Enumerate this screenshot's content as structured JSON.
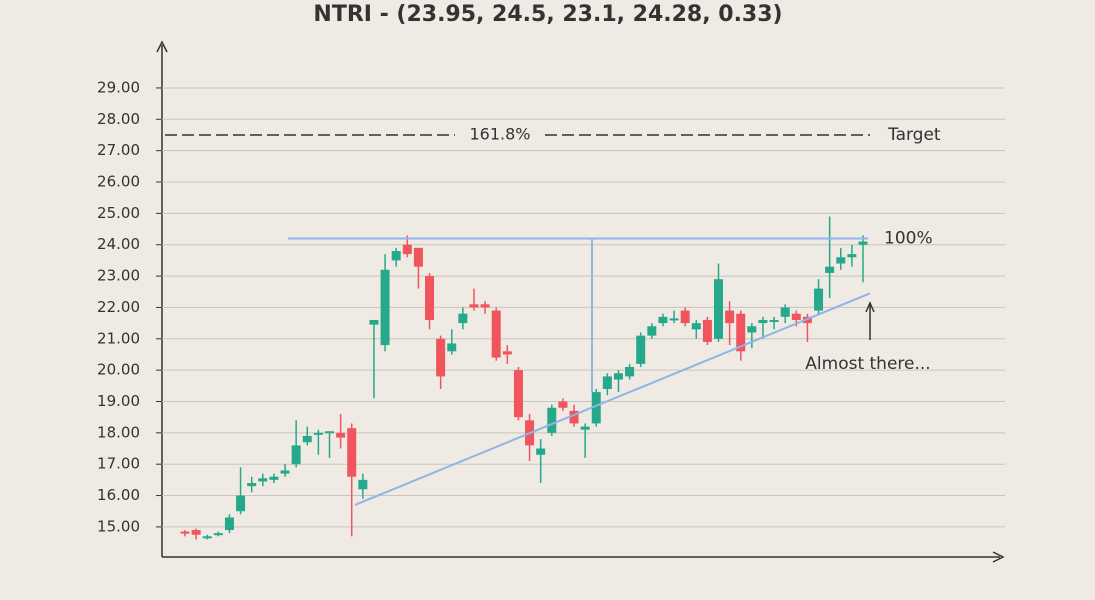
{
  "chart_data": {
    "type": "candlestick",
    "title": "NTRI - (23.95, 24.5, 23.1, 24.28, 0.33)",
    "up_color": "#26a98b",
    "down_color": "#f0545d",
    "grid": true,
    "ylim": [
      14.04,
      30.37
    ],
    "yticks": [
      {
        "value": 15,
        "label": "15.00"
      },
      {
        "value": 16,
        "label": "16.00"
      },
      {
        "value": 17,
        "label": "17.00"
      },
      {
        "value": 18,
        "label": "18.00"
      },
      {
        "value": 19,
        "label": "19.00"
      },
      {
        "value": 20,
        "label": "20.00"
      },
      {
        "value": 21,
        "label": "21.00"
      },
      {
        "value": 22,
        "label": "22.00"
      },
      {
        "value": 23,
        "label": "23.00"
      },
      {
        "value": 24,
        "label": "24.00"
      },
      {
        "value": 25,
        "label": "25.00"
      },
      {
        "value": 26,
        "label": "26.00"
      },
      {
        "value": 27,
        "label": "27.00"
      },
      {
        "value": 28,
        "label": "28.00"
      },
      {
        "value": 29,
        "label": "29.00"
      }
    ],
    "open": [
      14.85,
      14.9,
      14.65,
      14.75,
      14.9,
      15.5,
      16.3,
      16.45,
      16.5,
      16.7,
      17.0,
      17.7,
      17.95,
      18.0,
      18.0,
      18.15,
      16.2,
      21.45,
      20.8,
      23.5,
      24.0,
      23.9,
      23.0,
      21.0,
      20.6,
      21.5,
      22.1,
      22.1,
      21.9,
      20.6,
      20.0,
      18.4,
      17.3,
      18.0,
      19.0,
      18.7,
      18.1,
      18.3,
      19.4,
      19.7,
      19.8,
      20.2,
      21.1,
      21.5,
      21.6,
      21.9,
      21.3,
      21.6,
      21.0,
      21.9,
      21.8,
      21.2,
      21.5,
      21.55,
      21.7,
      21.8,
      21.7,
      21.9,
      23.1,
      23.4,
      23.6,
      24.0
    ],
    "high": [
      14.9,
      14.95,
      14.75,
      14.85,
      15.4,
      16.9,
      16.6,
      16.7,
      16.7,
      17.0,
      18.4,
      18.2,
      18.1,
      18.05,
      18.6,
      18.3,
      16.7,
      21.6,
      23.7,
      23.9,
      24.3,
      23.9,
      23.1,
      21.1,
      21.3,
      22.0,
      22.6,
      22.2,
      22.0,
      20.8,
      20.1,
      18.6,
      17.8,
      18.9,
      19.1,
      18.9,
      18.3,
      19.4,
      19.9,
      20.0,
      20.2,
      21.2,
      21.5,
      21.8,
      21.9,
      22.0,
      21.6,
      21.7,
      23.4,
      22.2,
      21.9,
      21.5,
      21.7,
      21.7,
      22.1,
      21.9,
      21.8,
      22.9,
      24.9,
      23.9,
      24.0,
      24.3
    ],
    "low": [
      14.7,
      14.6,
      14.6,
      14.7,
      14.8,
      15.4,
      16.1,
      16.3,
      16.4,
      16.6,
      16.9,
      17.6,
      17.3,
      17.2,
      17.5,
      14.7,
      15.9,
      19.1,
      20.6,
      23.3,
      23.6,
      22.6,
      21.3,
      19.4,
      20.5,
      21.3,
      21.9,
      21.8,
      20.3,
      20.2,
      18.4,
      17.1,
      16.4,
      17.9,
      18.7,
      18.2,
      17.2,
      18.2,
      19.2,
      19.3,
      19.7,
      20.1,
      21.0,
      21.4,
      21.5,
      21.4,
      21.0,
      20.8,
      20.9,
      20.8,
      20.3,
      20.7,
      21.0,
      21.3,
      21.5,
      21.4,
      20.9,
      21.8,
      22.3,
      23.2,
      23.3,
      22.8
    ],
    "close": [
      14.8,
      14.75,
      14.7,
      14.8,
      15.3,
      16.0,
      16.4,
      16.55,
      16.6,
      16.8,
      17.6,
      17.9,
      18.0,
      18.05,
      17.85,
      16.6,
      16.5,
      21.6,
      23.2,
      23.8,
      23.7,
      23.3,
      21.6,
      19.8,
      20.85,
      21.8,
      22.0,
      22.0,
      20.4,
      20.5,
      18.5,
      17.6,
      17.5,
      18.8,
      18.8,
      18.3,
      18.2,
      19.3,
      19.8,
      19.9,
      20.1,
      21.1,
      21.4,
      21.7,
      21.65,
      21.5,
      21.5,
      20.9,
      22.9,
      21.5,
      20.6,
      21.4,
      21.6,
      21.6,
      22.0,
      21.6,
      21.5,
      22.6,
      23.3,
      23.6,
      23.7,
      24.1
    ],
    "target": {
      "value": 27.5,
      "label": "161.8%",
      "side_label": "Target"
    },
    "resistance": {
      "value": 24.2,
      "label": "100%"
    },
    "measure": [
      24.2,
      19.3
    ],
    "trendline": {
      "values": [
        15.7,
        22.45
      ],
      "label": "Almost there..."
    }
  }
}
